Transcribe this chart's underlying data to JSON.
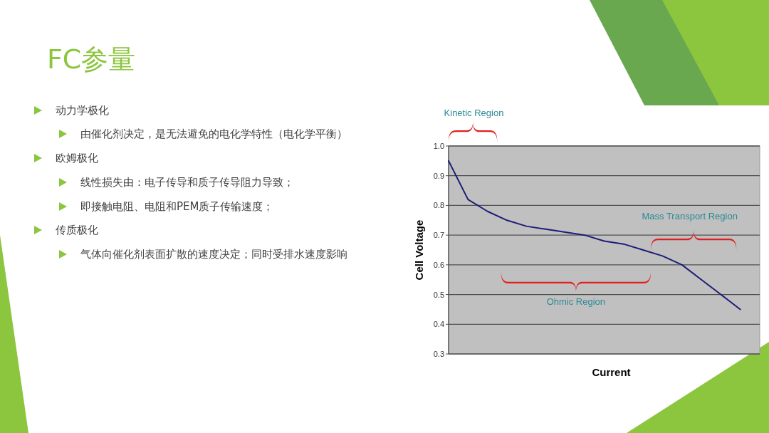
{
  "chart_data": {
    "type": "line",
    "title": "FC参量",
    "xlabel": "Current",
    "ylabel": "Cell Voltage",
    "categories": [
      null,
      null,
      null,
      null,
      null,
      null,
      null,
      null,
      null,
      null,
      null,
      null,
      null,
      null,
      null,
      null,
      null
    ],
    "series": [
      {
        "color": "#1c1c78",
        "values": [
          0.95,
          0.82,
          0.78,
          0.75,
          0.73,
          0.72,
          0.71,
          0.7,
          0.68,
          0.67,
          0.65,
          0.63,
          0.6,
          0.55,
          0.5,
          0.45,
          null
        ]
      }
    ],
    "ylim": [
      0.3,
      1.0
    ],
    "yticks": [
      0.3,
      0.4,
      0.5,
      0.6,
      0.7,
      0.8,
      0.9,
      {
        "value": 1.0,
        "label": "1.0"
      }
    ],
    "grid": "y",
    "annotations": [
      "Kinetic Region",
      "Ohmic Region",
      "Mass Transport Region",
      "动力学极化",
      "由催化剂决定，是无法避免的电化学特性（电化学平衡）",
      "欧姆极化",
      "线性损失由：电子传导和质子传导阻力导致；",
      "即接触电阻、电阻和PEM质子传输速度；",
      "传质极化",
      "气体向催化剂表面扩散的速度决定；同时受排水速度影响"
    ]
  }
}
